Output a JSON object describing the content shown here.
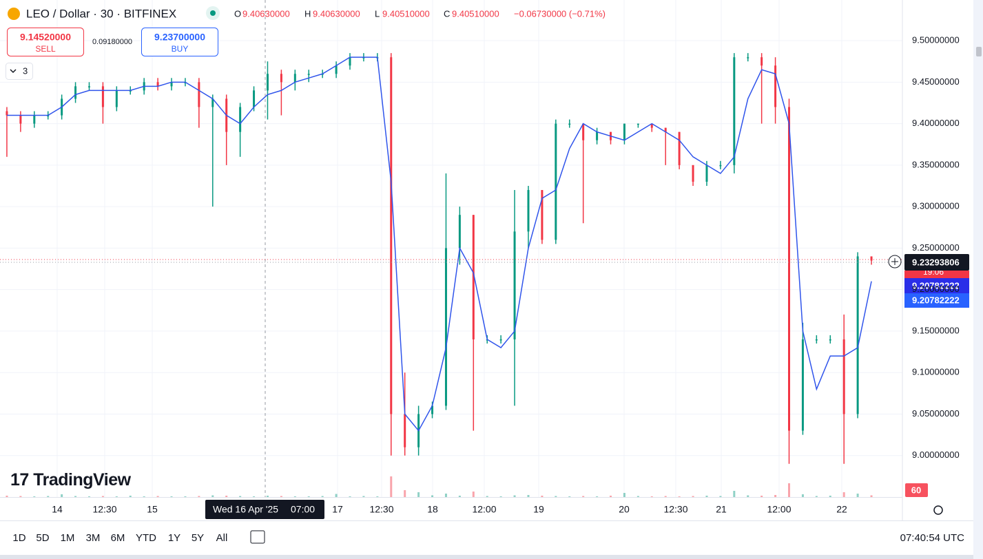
{
  "ui": {
    "symbol": "LEO / Dollar · 30 · BITFINEX",
    "ohlc": {
      "o_label": "O",
      "o": "9.40630000",
      "h_label": "H",
      "h": "9.40630000",
      "l_label": "L",
      "l": "9.40510000",
      "c_label": "C",
      "c": "9.40510000",
      "change": "−0.06730000 (−0.71%)"
    },
    "sell": {
      "price": "9.14520000",
      "label": "SELL"
    },
    "spread": "0.09180000",
    "buy": {
      "price": "9.23700000",
      "label": "BUY"
    },
    "indicators": "3",
    "logo": "TradingView",
    "price_tags": {
      "last": "9.23293806",
      "countdown": "19:06",
      "ma_a": "9.20782222",
      "ma_b": "9.20782222",
      "volume": "60"
    },
    "crosshair_time": {
      "date": "Wed 16 Apr '25",
      "time": "07:00"
    },
    "ranges": [
      "1D",
      "5D",
      "1M",
      "3M",
      "6M",
      "YTD",
      "1Y",
      "5Y",
      "All"
    ],
    "clock": "07:40:54 UTC"
  },
  "chart_data": {
    "type": "candlestick",
    "x_labels": [
      "14",
      "12:30",
      "15",
      "17",
      "12:30",
      "18",
      "12:00",
      "19",
      "20",
      "12:30",
      "21",
      "12:00",
      "22"
    ],
    "open": [
      9.415,
      9.41,
      9.4,
      9.41,
      9.41,
      9.43,
      9.445,
      9.445,
      9.42,
      9.44,
      9.44,
      9.45,
      9.445,
      9.45,
      9.45,
      9.42,
      9.43,
      9.39,
      9.42,
      9.44,
      9.46,
      9.45,
      9.46,
      9.46,
      9.46,
      9.47,
      9.48,
      9.48,
      9.48,
      9.05,
      9.01,
      9.05,
      9.06,
      9.25,
      9.29,
      9.14,
      9.14,
      9.14,
      9.27,
      9.32,
      9.26,
      9.4,
      9.4,
      9.38,
      9.39,
      9.38,
      9.4,
      9.4,
      9.395,
      9.39,
      9.35,
      9.33,
      9.35,
      9.35,
      9.48,
      9.48,
      9.47,
      9.42,
      9.03,
      9.14,
      9.14,
      9.14,
      9.05,
      9.24
    ],
    "high": [
      9.42,
      9.415,
      9.415,
      9.415,
      9.435,
      9.45,
      9.45,
      9.45,
      9.445,
      9.445,
      9.455,
      9.455,
      9.455,
      9.455,
      9.455,
      9.435,
      9.435,
      9.425,
      9.445,
      9.475,
      9.465,
      9.465,
      9.465,
      9.465,
      9.475,
      9.485,
      9.485,
      9.485,
      9.485,
      9.1,
      9.06,
      9.065,
      9.34,
      9.3,
      9.29,
      9.145,
      9.145,
      9.32,
      9.325,
      9.32,
      9.405,
      9.405,
      9.4,
      9.395,
      9.39,
      9.4,
      9.4,
      9.4,
      9.395,
      9.39,
      9.35,
      9.355,
      9.355,
      9.485,
      9.485,
      9.485,
      9.48,
      9.43,
      9.16,
      9.145,
      9.145,
      9.17,
      9.245,
      9.24
    ],
    "low": [
      9.36,
      9.39,
      9.395,
      9.405,
      9.405,
      9.425,
      9.44,
      9.4,
      9.415,
      9.435,
      9.435,
      9.44,
      9.44,
      9.445,
      9.395,
      9.3,
      9.35,
      9.36,
      9.415,
      9.405,
      9.41,
      9.44,
      9.45,
      9.455,
      9.455,
      9.465,
      9.475,
      9.475,
      9.0,
      9.0,
      9.0,
      9.045,
      9.055,
      9.23,
      9.03,
      9.135,
      9.135,
      9.06,
      9.25,
      9.255,
      9.255,
      9.395,
      9.28,
      9.375,
      9.375,
      9.375,
      9.395,
      9.39,
      9.35,
      9.345,
      9.325,
      9.325,
      9.345,
      9.34,
      9.475,
      9.4,
      9.4,
      8.99,
      9.025,
      9.135,
      9.135,
      8.99,
      9.045,
      9.23
    ],
    "close": [
      9.41,
      9.4,
      9.41,
      9.41,
      9.43,
      9.445,
      9.445,
      9.42,
      9.44,
      9.44,
      9.45,
      9.445,
      9.45,
      9.45,
      9.42,
      9.43,
      9.39,
      9.42,
      9.44,
      9.46,
      9.45,
      9.46,
      9.46,
      9.46,
      9.47,
      9.48,
      9.48,
      9.48,
      9.05,
      9.01,
      9.05,
      9.06,
      9.25,
      9.29,
      9.14,
      9.14,
      9.14,
      9.27,
      9.32,
      9.26,
      9.4,
      9.4,
      9.38,
      9.39,
      9.38,
      9.4,
      9.4,
      9.395,
      9.39,
      9.35,
      9.33,
      9.35,
      9.35,
      9.48,
      9.48,
      9.47,
      9.42,
      9.03,
      9.14,
      9.14,
      9.14,
      9.05,
      9.24,
      9.235
    ],
    "volume": [
      4,
      3,
      2,
      3,
      8,
      3,
      2,
      3,
      2,
      4,
      2,
      3,
      2,
      2,
      3,
      5,
      4,
      3,
      2,
      4,
      3,
      2,
      2,
      3,
      9,
      2,
      3,
      2,
      60,
      20,
      14,
      5,
      10,
      4,
      16,
      3,
      2,
      5,
      6,
      4,
      3,
      2,
      3,
      2,
      4,
      12,
      3,
      2,
      3,
      2,
      3,
      4,
      3,
      18,
      5,
      4,
      6,
      40,
      8,
      3,
      4,
      14,
      10,
      5
    ],
    "ma": {
      "color": "#2f54eb",
      "values": [
        9.41,
        9.41,
        9.41,
        9.41,
        9.42,
        9.435,
        9.44,
        9.44,
        9.44,
        9.44,
        9.445,
        9.445,
        9.45,
        9.45,
        9.44,
        9.43,
        9.41,
        9.4,
        9.42,
        9.435,
        9.44,
        9.45,
        9.455,
        9.46,
        9.47,
        9.48,
        9.48,
        9.48,
        9.33,
        9.05,
        9.03,
        9.06,
        9.13,
        9.25,
        9.22,
        9.14,
        9.13,
        9.15,
        9.25,
        9.31,
        9.32,
        9.37,
        9.4,
        9.39,
        9.385,
        9.38,
        9.39,
        9.4,
        9.39,
        9.38,
        9.36,
        9.35,
        9.34,
        9.36,
        9.43,
        9.465,
        9.46,
        9.4,
        9.15,
        9.08,
        9.12,
        9.12,
        9.13,
        9.21
      ]
    },
    "colors": {
      "up": "#089981",
      "down": "#f23645"
    },
    "ylim": [
      8.95,
      9.549
    ],
    "yticks": [
      {
        "value": 9.0,
        "label": "9.00000000"
      },
      {
        "value": 9.05,
        "label": "9.05000000"
      },
      {
        "value": 9.1,
        "label": "9.10000000"
      },
      {
        "value": 9.15,
        "label": "9.15000000"
      },
      {
        "value": 9.2,
        "label": "9.20000000"
      },
      {
        "value": 9.25,
        "label": "9.25000000"
      },
      {
        "value": 9.3,
        "label": "9.30000000"
      },
      {
        "value": 9.35,
        "label": "9.35000000"
      },
      {
        "value": 9.4,
        "label": "9.40000000"
      },
      {
        "value": 9.45,
        "label": "9.45000000"
      },
      {
        "value": 9.5,
        "label": "9.50000000"
      }
    ],
    "grid": true
  }
}
